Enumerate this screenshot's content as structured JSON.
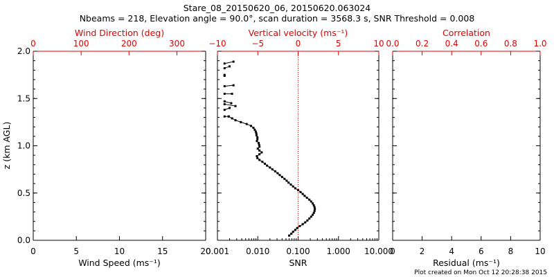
{
  "title_line1": "Stare_08_20150620_06, 20150620.063024",
  "title_line2": "Nbeams = 218, Elevation angle = 90.0°, scan duration = 3568.3 s, SNR Threshold = 0.008",
  "footer": "Plot created on Mon Oct 12 20:28:38 2015",
  "ylabel": "z (km AGL)",
  "colors": {
    "axis": "#000000",
    "accent": "#e00000",
    "data": "#000000"
  },
  "chart_data": [
    {
      "type": "scatter",
      "panel": "left",
      "bottom_axis": {
        "label": "Wind Speed (ms⁻¹)",
        "range": [
          0,
          20
        ],
        "ticks": [
          0,
          5,
          10,
          15,
          20
        ],
        "tick_labels": [
          "0",
          "5",
          "10",
          "15",
          "20"
        ]
      },
      "top_axis": {
        "label": "Wind Direction (deg)",
        "range": [
          0,
          360
        ],
        "ticks": [
          0,
          100,
          200,
          300
        ],
        "tick_labels": [
          "0",
          "100",
          "200",
          "300"
        ],
        "color": "#e00000"
      },
      "y_axis": {
        "label": "z (km AGL)",
        "range": [
          0,
          2.0
        ],
        "ticks": [
          0,
          0.5,
          1.0,
          1.5,
          2.0
        ],
        "tick_labels": [
          "0.0",
          "0.5",
          "1.0",
          "1.5",
          "2.0"
        ]
      },
      "series": []
    },
    {
      "type": "line",
      "panel": "middle",
      "bottom_axis": {
        "label": "SNR",
        "scale": "log",
        "range": [
          0.001,
          10
        ],
        "ticks": [
          0.001,
          0.01,
          0.1,
          1,
          10
        ],
        "tick_labels": [
          "0.001",
          "0.010",
          "0.100",
          "1.000",
          "10.000"
        ]
      },
      "top_axis": {
        "label": "Vertical velocity (ms⁻¹)",
        "range": [
          -10,
          10
        ],
        "ticks": [
          -10,
          -5,
          0,
          5,
          10
        ],
        "tick_labels": [
          "−10",
          "−5",
          "0",
          "5",
          "10"
        ],
        "color": "#e00000"
      },
      "y_axis": {
        "range": [
          0,
          2.0
        ],
        "ticks": [
          0,
          0.5,
          1.0,
          1.5,
          2.0
        ]
      },
      "reference_line": {
        "axis": "top",
        "value": 0,
        "style": "dotted",
        "color": "#e00000"
      },
      "series": [
        {
          "name": "SNR profile",
          "x_axis": "bottom",
          "points": [
            [
              0.06,
              0.05
            ],
            [
              0.068,
              0.07
            ],
            [
              0.075,
              0.09
            ],
            [
              0.085,
              0.11
            ],
            [
              0.095,
              0.13
            ],
            [
              0.11,
              0.15
            ],
            [
              0.13,
              0.17
            ],
            [
              0.15,
              0.19
            ],
            [
              0.17,
              0.21
            ],
            [
              0.19,
              0.23
            ],
            [
              0.21,
              0.25
            ],
            [
              0.23,
              0.27
            ],
            [
              0.245,
              0.29
            ],
            [
              0.255,
              0.31
            ],
            [
              0.26,
              0.33
            ],
            [
              0.255,
              0.35
            ],
            [
              0.245,
              0.37
            ],
            [
              0.23,
              0.39
            ],
            [
              0.21,
              0.41
            ],
            [
              0.19,
              0.43
            ],
            [
              0.165,
              0.45
            ],
            [
              0.145,
              0.47
            ],
            [
              0.13,
              0.49
            ],
            [
              0.115,
              0.51
            ],
            [
              0.1,
              0.53
            ],
            [
              0.085,
              0.55
            ],
            [
              0.075,
              0.57
            ],
            [
              0.066,
              0.59
            ],
            [
              0.058,
              0.61
            ],
            [
              0.052,
              0.63
            ],
            [
              0.046,
              0.65
            ],
            [
              0.04,
              0.67
            ],
            [
              0.035,
              0.69
            ],
            [
              0.031,
              0.71
            ],
            [
              0.027,
              0.73
            ],
            [
              0.023,
              0.75
            ],
            [
              0.02,
              0.77
            ],
            [
              0.017,
              0.79
            ],
            [
              0.015,
              0.81
            ],
            [
              0.013,
              0.83
            ],
            [
              0.011,
              0.85
            ],
            [
              0.0098,
              0.87
            ],
            [
              0.0095,
              0.89
            ],
            [
              0.011,
              0.91
            ],
            [
              0.0125,
              0.93
            ],
            [
              0.011,
              0.95
            ],
            [
              0.01,
              0.97
            ],
            [
              0.011,
              0.99
            ],
            [
              0.0108,
              1.01
            ],
            [
              0.0105,
              1.03
            ],
            [
              0.0095,
              1.05
            ],
            [
              0.0098,
              1.07
            ],
            [
              0.0098,
              1.09
            ],
            [
              0.0093,
              1.11
            ],
            [
              0.0092,
              1.13
            ],
            [
              0.0089,
              1.15
            ],
            [
              0.0084,
              1.17
            ],
            [
              0.0078,
              1.19
            ],
            [
              0.0068,
              1.21
            ],
            [
              0.0053,
              1.23
            ],
            [
              0.0038,
              1.25
            ],
            [
              0.0028,
              1.27
            ],
            [
              0.0023,
              1.29
            ],
            [
              0.0019,
              1.31
            ]
          ]
        },
        {
          "name": "SNR spikes",
          "x_axis": "bottom",
          "segments": [
            [
              [
                0.0015,
                1.31
              ],
              [
                0.0019,
                1.31
              ]
            ],
            [
              [
                0.0015,
                1.38
              ],
              [
                0.002,
                1.4
              ]
            ],
            [
              [
                0.0015,
                1.44
              ],
              [
                0.0028,
                1.42
              ]
            ],
            [
              [
                0.0015,
                1.47
              ],
              [
                0.0022,
                1.45
              ]
            ],
            [
              [
                0.0015,
                1.55
              ],
              [
                0.0023,
                1.55
              ]
            ],
            [
              [
                0.0015,
                1.63
              ],
              [
                0.0025,
                1.64
              ]
            ],
            [
              [
                0.0015,
                1.74
              ],
              [
                0.0015,
                1.75
              ]
            ],
            [
              [
                0.0015,
                1.82
              ],
              [
                0.002,
                1.84
              ]
            ],
            [
              [
                0.0015,
                1.87
              ],
              [
                0.0025,
                1.89
              ]
            ]
          ]
        }
      ]
    },
    {
      "type": "scatter",
      "panel": "right",
      "bottom_axis": {
        "label": "Residual (ms⁻¹)",
        "range": [
          0,
          10
        ],
        "ticks": [
          0,
          2,
          4,
          6,
          8,
          10
        ],
        "tick_labels": [
          "0",
          "2",
          "4",
          "6",
          "8",
          "10"
        ]
      },
      "top_axis": {
        "label": "Correlation",
        "range": [
          0,
          1
        ],
        "ticks": [
          0,
          0.2,
          0.4,
          0.6,
          0.8,
          1.0
        ],
        "tick_labels": [
          "0.0",
          "0.2",
          "0.4",
          "0.6",
          "0.8",
          "1.0"
        ],
        "color": "#e00000"
      },
      "y_axis": {
        "range": [
          0,
          2.0
        ],
        "ticks": [
          0,
          0.5,
          1.0,
          1.5,
          2.0
        ]
      },
      "series": []
    }
  ]
}
